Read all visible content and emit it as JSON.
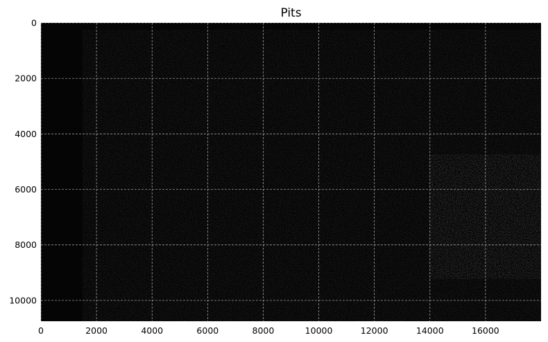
{
  "chart_data": {
    "type": "heatmap",
    "title": "Pits",
    "xlabel": "",
    "ylabel": "",
    "xlim": [
      0,
      18000
    ],
    "ylim": [
      10750,
      0
    ],
    "y_inverted": true,
    "grid": true,
    "grid_style": "dashed",
    "colormap": "gray",
    "x_ticks": [
      0,
      2000,
      4000,
      6000,
      8000,
      10000,
      12000,
      14000,
      16000
    ],
    "y_ticks": [
      0,
      2000,
      4000,
      6000,
      8000,
      10000
    ],
    "x_tick_labels": [
      "0",
      "2000",
      "4000",
      "6000",
      "8000",
      "10000",
      "12000",
      "14000",
      "16000"
    ],
    "y_tick_labels": [
      "0",
      "2000",
      "4000",
      "6000",
      "8000",
      "10000"
    ]
  },
  "colors": {
    "background": "#050505",
    "feature": "#1c1c1c",
    "grid": "#d0d0d0",
    "axes_border": "#000000"
  }
}
